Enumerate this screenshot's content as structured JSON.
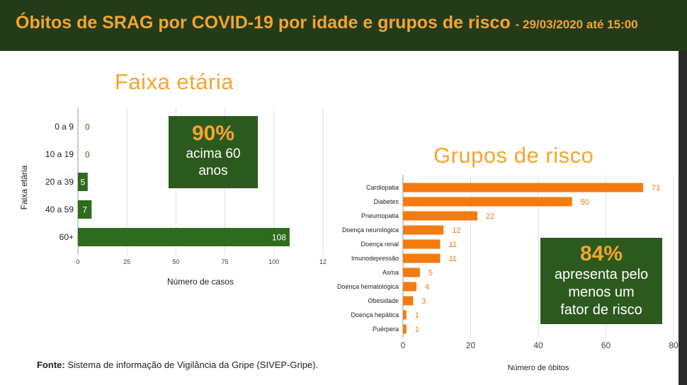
{
  "header": {
    "title": "Óbitos de SRAG por COVID-19 por idade e grupos de risco",
    "subtitle": "- 29/03/2020 até 15:00"
  },
  "age_panel": {
    "heading": "Faixa etária",
    "callout": {
      "percent": "90%",
      "line1": "acima 60",
      "line2": "anos"
    }
  },
  "risk_panel": {
    "heading": "Grupos de risco",
    "callout": {
      "percent": "84%",
      "line1": "apresenta pelo",
      "line2": "menos um",
      "line3": "fator de risco"
    }
  },
  "source": {
    "label": "Fonte:",
    "text": "Sistema de informação de Vigilância da Gripe (SIVEP-Gripe)."
  },
  "colors": {
    "header_bg": "#243b1a",
    "accent_orange": "#f6a42c",
    "green_bar": "#2f6b1c",
    "orange_bar": "#f47b10",
    "callout_bg": "#2c5a1e"
  },
  "chart_data": [
    {
      "type": "bar",
      "orientation": "horizontal",
      "categories": [
        "0 a 9",
        "10 a 19",
        "20 a 39",
        "40 a 59",
        "60+"
      ],
      "values": [
        0,
        0,
        5,
        7,
        108
      ],
      "xlabel": "Número de casos",
      "ylabel": "Faixa etária",
      "xlim": [
        0,
        125
      ],
      "xticks": [
        "0",
        "25",
        "50",
        "75",
        "100",
        "12"
      ],
      "grid": true,
      "color": "#2f6b1c"
    },
    {
      "type": "bar",
      "orientation": "horizontal",
      "categories": [
        "Cardiopatia",
        "Diabetes",
        "Pneumopatia",
        "Doença neurológica",
        "Doença renal",
        "Imunodepressão",
        "Asma",
        "Doença hematológica",
        "Obesidade",
        "Doença hepática",
        "Puérpera"
      ],
      "values": [
        71,
        50,
        22,
        12,
        11,
        11,
        5,
        4,
        3,
        1,
        1
      ],
      "xlabel": "Número de óbitos",
      "ylabel": "",
      "xlim": [
        0,
        80
      ],
      "xticks": [
        "0",
        "20",
        "40",
        "60",
        "80"
      ],
      "grid": true,
      "color": "#f47b10"
    }
  ]
}
